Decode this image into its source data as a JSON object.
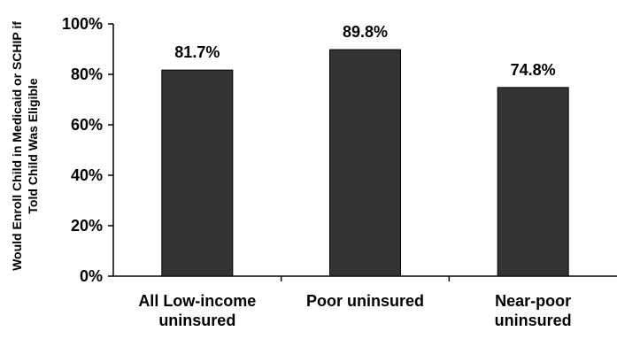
{
  "chart_data": {
    "type": "bar",
    "title": "",
    "ylabel_lines": [
      "Would Enroll Child in Medicaid or SCHIP if",
      "Told Child Was Eligible"
    ],
    "xlabel": "",
    "categories": [
      [
        "All Low-income",
        "uninsured"
      ],
      [
        "Poor uninsured"
      ],
      [
        "Near-poor",
        "uninsured"
      ]
    ],
    "values": [
      81.7,
      89.8,
      74.8
    ],
    "value_labels": [
      "81.7%",
      "89.8%",
      "74.8%"
    ],
    "ylim": [
      0,
      100
    ],
    "yticks": [
      0,
      20,
      40,
      60,
      80,
      100
    ],
    "ytick_labels": [
      "0%",
      "20%",
      "40%",
      "60%",
      "80%",
      "100%"
    ],
    "grid": false,
    "legend": "none",
    "colors": {
      "bar": "#333333",
      "axis": "#000000"
    }
  }
}
